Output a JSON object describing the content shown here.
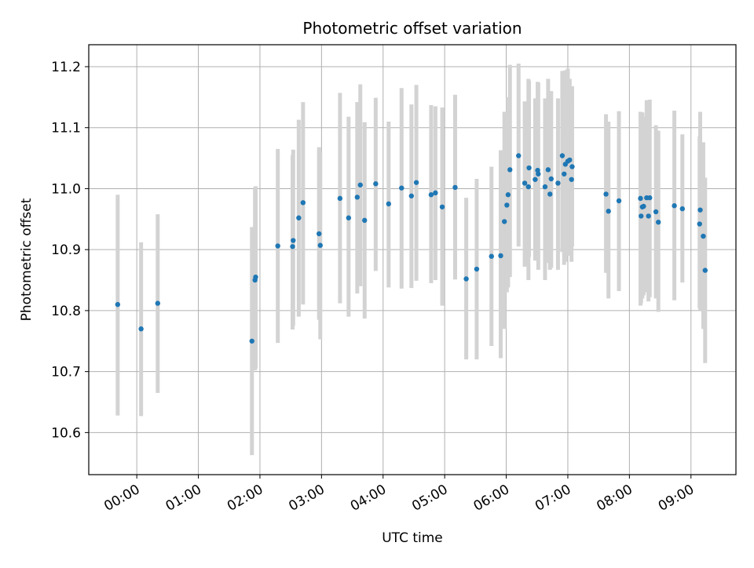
{
  "chart_data": {
    "type": "scatter",
    "title": "Photometric offset variation",
    "xlabel": "UTC time",
    "ylabel": "Photometric offset",
    "grid": true,
    "x_tick_labels": [
      "00:00",
      "01:00",
      "02:00",
      "03:00",
      "04:00",
      "05:00",
      "06:00",
      "07:00",
      "08:00",
      "09:00"
    ],
    "y_tick_labels": [
      "10.6",
      "10.7",
      "10.8",
      "10.9",
      "11.0",
      "11.1",
      "11.2"
    ],
    "y_ticks": [
      10.6,
      10.7,
      10.8,
      10.9,
      11.0,
      11.1,
      11.2
    ],
    "x_range_hours": [
      -0.78,
      9.73
    ],
    "ylim": [
      10.531,
      11.236
    ],
    "point_color": "#1f77b4",
    "errorbar_color": "#d3d3d3",
    "series": [
      {
        "x_hours": [
          -0.31,
          0.07,
          0.34,
          1.87,
          1.92,
          1.93,
          2.29,
          2.53,
          2.54,
          2.63,
          2.7,
          2.96,
          2.98,
          3.3,
          3.44,
          3.58,
          3.63,
          3.7,
          3.88,
          4.09,
          4.3,
          4.46,
          4.54,
          4.78,
          4.85,
          4.96,
          5.17,
          5.35,
          5.52,
          5.76,
          5.91,
          5.97,
          6.01,
          6.03,
          6.06,
          6.2,
          6.3,
          6.36,
          6.37,
          6.47,
          6.51,
          6.52,
          6.63,
          6.68,
          6.71,
          6.73,
          6.84,
          6.91,
          6.94,
          6.96,
          7.0,
          7.03,
          7.06,
          7.07,
          7.62,
          7.66,
          7.83,
          8.18,
          8.19,
          8.21,
          8.23,
          8.28,
          8.31,
          8.33,
          8.43,
          8.47,
          8.73,
          8.86,
          9.14,
          9.15,
          9.2,
          9.23
        ],
        "y": [
          10.81,
          10.77,
          10.812,
          10.75,
          10.85,
          10.855,
          10.906,
          10.905,
          10.915,
          10.952,
          10.977,
          10.926,
          10.907,
          10.984,
          10.952,
          10.986,
          11.006,
          10.948,
          11.008,
          10.975,
          11.001,
          10.988,
          11.01,
          10.99,
          10.993,
          10.97,
          11.002,
          10.852,
          10.868,
          10.889,
          10.89,
          10.946,
          10.973,
          10.99,
          11.031,
          11.054,
          11.009,
          11.003,
          11.034,
          11.015,
          11.03,
          11.024,
          11.003,
          11.031,
          10.991,
          11.016,
          11.009,
          11.054,
          11.024,
          11.04,
          11.045,
          11.047,
          11.015,
          11.036,
          10.991,
          10.963,
          10.98,
          10.984,
          10.955,
          10.97,
          10.971,
          10.985,
          10.955,
          10.985,
          10.962,
          10.945,
          10.972,
          10.967,
          10.942,
          10.965,
          10.922,
          10.866
        ],
        "y_low": [
          10.628,
          10.627,
          10.665,
          10.563,
          10.702,
          10.705,
          10.747,
          10.769,
          10.775,
          10.79,
          10.81,
          10.785,
          10.753,
          10.812,
          10.79,
          10.828,
          10.84,
          10.787,
          10.865,
          10.838,
          10.836,
          10.837,
          10.849,
          10.845,
          10.85,
          10.808,
          10.851,
          10.72,
          10.72,
          10.742,
          10.722,
          10.77,
          10.83,
          10.838,
          10.855,
          10.905,
          10.872,
          10.85,
          10.888,
          10.882,
          10.884,
          10.867,
          10.85,
          10.878,
          10.867,
          10.87,
          10.867,
          10.896,
          10.875,
          10.88,
          10.89,
          10.9,
          10.88,
          10.905,
          10.862,
          10.82,
          10.832,
          10.808,
          10.812,
          10.82,
          10.825,
          10.83,
          10.815,
          10.822,
          10.82,
          10.798,
          10.817,
          10.846,
          10.804,
          10.8,
          10.77,
          10.714
        ],
        "y_high": [
          10.99,
          10.912,
          10.958,
          10.937,
          11.002,
          11.004,
          11.065,
          11.055,
          11.064,
          11.113,
          11.142,
          11.068,
          11.06,
          11.157,
          11.118,
          11.142,
          11.171,
          11.109,
          11.149,
          11.11,
          11.165,
          11.138,
          11.17,
          11.137,
          11.135,
          11.133,
          11.154,
          10.985,
          11.016,
          11.036,
          11.063,
          11.126,
          11.12,
          11.15,
          11.203,
          11.205,
          11.143,
          11.18,
          11.177,
          11.148,
          11.175,
          11.174,
          11.148,
          11.18,
          11.117,
          11.16,
          11.148,
          11.193,
          11.188,
          11.194,
          11.197,
          11.18,
          11.15,
          11.168,
          11.122,
          11.11,
          11.127,
          11.126,
          11.122,
          11.125,
          11.118,
          11.145,
          11.105,
          11.146,
          11.104,
          11.095,
          11.128,
          11.089,
          11.086,
          11.126,
          11.076,
          11.018
        ]
      }
    ]
  }
}
